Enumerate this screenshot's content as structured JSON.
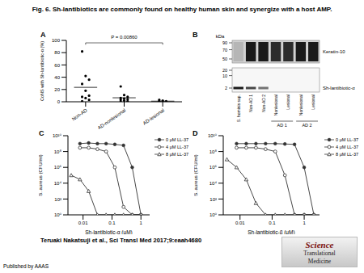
{
  "title": "Fig. 6. Sh-lantibiotics are commonly found on healthy human skin and synergize with a host AMP.",
  "chart_data": [
    {
      "panel": "A",
      "type": "scatter",
      "y_label": "CoNS with Sh-lantibiotic-α (%)",
      "categories": [
        "Non-AD",
        "AD-nonlesional",
        "AD-lesional"
      ],
      "values": [
        [
          82,
          42,
          36,
          29,
          18,
          10,
          8,
          6,
          3,
          1
        ],
        [
          25,
          11,
          8,
          6,
          5,
          4,
          3,
          2,
          1,
          0
        ],
        [
          3,
          2,
          1,
          1,
          0,
          0,
          0
        ]
      ],
      "means": [
        23.5,
        6.5,
        1
      ],
      "annotation": "P = 0.00860",
      "color": "#000000",
      "ylim": [
        0,
        100
      ],
      "yticks": [
        0,
        20,
        40,
        60,
        80,
        100
      ]
    },
    {
      "panel": "C",
      "type": "line",
      "log": true,
      "x_label": "Sh-lantibiotic-α (μM)",
      "y_label": "S. aureus (CFU/ml)",
      "x": [
        0.0039,
        0.0078,
        0.0156,
        0.0313,
        0.0625,
        0.125,
        0.25,
        0.5,
        1
      ],
      "series": [
        {
          "name": "0 μM LL-37",
          "color": "#333333",
          "marker": "circle",
          "values": [
            null,
            1000000000.0,
            1200000000.0,
            1000000000.0,
            1000000000.0,
            800000000.0,
            600000000.0,
            1000000.0,
            1
          ]
        },
        {
          "name": "4 μM LL-37",
          "color": "#333333",
          "marker": "open_circle",
          "values": [
            null,
            300000000.0,
            300000000.0,
            200000000.0,
            100000000.0,
            1000000.0,
            10,
            1,
            1
          ]
        },
        {
          "name": "8 μM LL-37",
          "color": "#333333",
          "marker": "open_triangle",
          "values": [
            100000.0,
            30000.0,
            1000,
            1,
            1,
            1,
            1,
            1,
            1
          ]
        }
      ],
      "xlim": [
        0.003,
        2
      ],
      "xticks": [
        0.01,
        0.1,
        1
      ],
      "ylim": [
        1,
        10000000000.0
      ],
      "yticks": [
        {
          "value": 1,
          "label": "10⁰"
        },
        {
          "value": 100,
          "label": "10²"
        },
        {
          "value": 10000,
          "label": "10⁴"
        },
        {
          "value": 1000000,
          "label": "10⁶"
        },
        {
          "value": 100000000,
          "label": "10⁸"
        },
        {
          "value": 10000000000.0,
          "label": "10¹⁰"
        }
      ],
      "legend": "upper right"
    },
    {
      "panel": "D",
      "type": "line",
      "log": true,
      "x_label": "Sh-lantibiotic-β (μM)",
      "y_label": "S. aureus (CFU/ml)",
      "x": [
        0.0039,
        0.0078,
        0.0156,
        0.0313,
        0.0625,
        0.125,
        0.25,
        0.5,
        1,
        2
      ],
      "series": [
        {
          "name": "0 μM LL-37",
          "color": "#333333",
          "marker": "circle",
          "values": [
            null,
            1000000000.0,
            1000000000.0,
            1000000000.0,
            1000000000.0,
            1000000000.0,
            900000000.0,
            800000000.0,
            1000000.0,
            1
          ]
        },
        {
          "name": "4 μM LL-37",
          "color": "#333333",
          "marker": "open_circle",
          "values": [
            null,
            300000000.0,
            300000000.0,
            300000000.0,
            200000000.0,
            100000000.0,
            100000.0,
            1,
            1,
            1
          ]
        },
        {
          "name": "8 μM LL-37",
          "color": "#333333",
          "marker": "open_triangle",
          "values": [
            10000000.0,
            1000000.0,
            30000.0,
            30,
            1,
            1,
            1,
            1,
            1,
            1
          ]
        }
      ],
      "xlim": [
        0.003,
        3
      ],
      "xticks": [
        0.01,
        0.1,
        1
      ],
      "ylim": [
        1,
        10000000000.0
      ],
      "yticks": [
        {
          "value": 1,
          "label": "10⁰"
        },
        {
          "value": 100,
          "label": "10²"
        },
        {
          "value": 10000,
          "label": "10⁴"
        },
        {
          "value": 1000000,
          "label": "10⁶"
        },
        {
          "value": 100000000,
          "label": "10⁸"
        },
        {
          "value": 10000000000.0,
          "label": "10¹⁰"
        }
      ],
      "legend": "upper right"
    }
  ],
  "blot": {
    "panel": "B",
    "unit": "kDa",
    "blots": [
      {
        "label": "Keratin-10",
        "kda": [
          90,
          70,
          50
        ],
        "bands": [
          0.15,
          1,
          1,
          0.9,
          0.9,
          1,
          1
        ]
      },
      {
        "label": "Sh-lantibiotic-α",
        "kda": [
          20,
          10,
          2
        ],
        "band_kda": 2,
        "bands": [
          1,
          0.8,
          0.6,
          0,
          0,
          0,
          0
        ]
      }
    ],
    "lanes": [
      "S. hominis sup.",
      "Non-AD 1",
      "Non-AD 2",
      "Nonlesional",
      "Lesional",
      "Nonlesional",
      "Lesional"
    ],
    "groups": [
      {
        "label": "AD 1",
        "lanes": [
          3,
          4
        ]
      },
      {
        "label": "AD 2",
        "lanes": [
          5,
          6
        ]
      }
    ]
  },
  "citation": "Teruaki Nakatsuji et al., Sci Transl Med 2017;9:eaah4680",
  "publisher": "Published by AAAS",
  "journal": [
    "Science",
    "Translational",
    "Medicine"
  ]
}
